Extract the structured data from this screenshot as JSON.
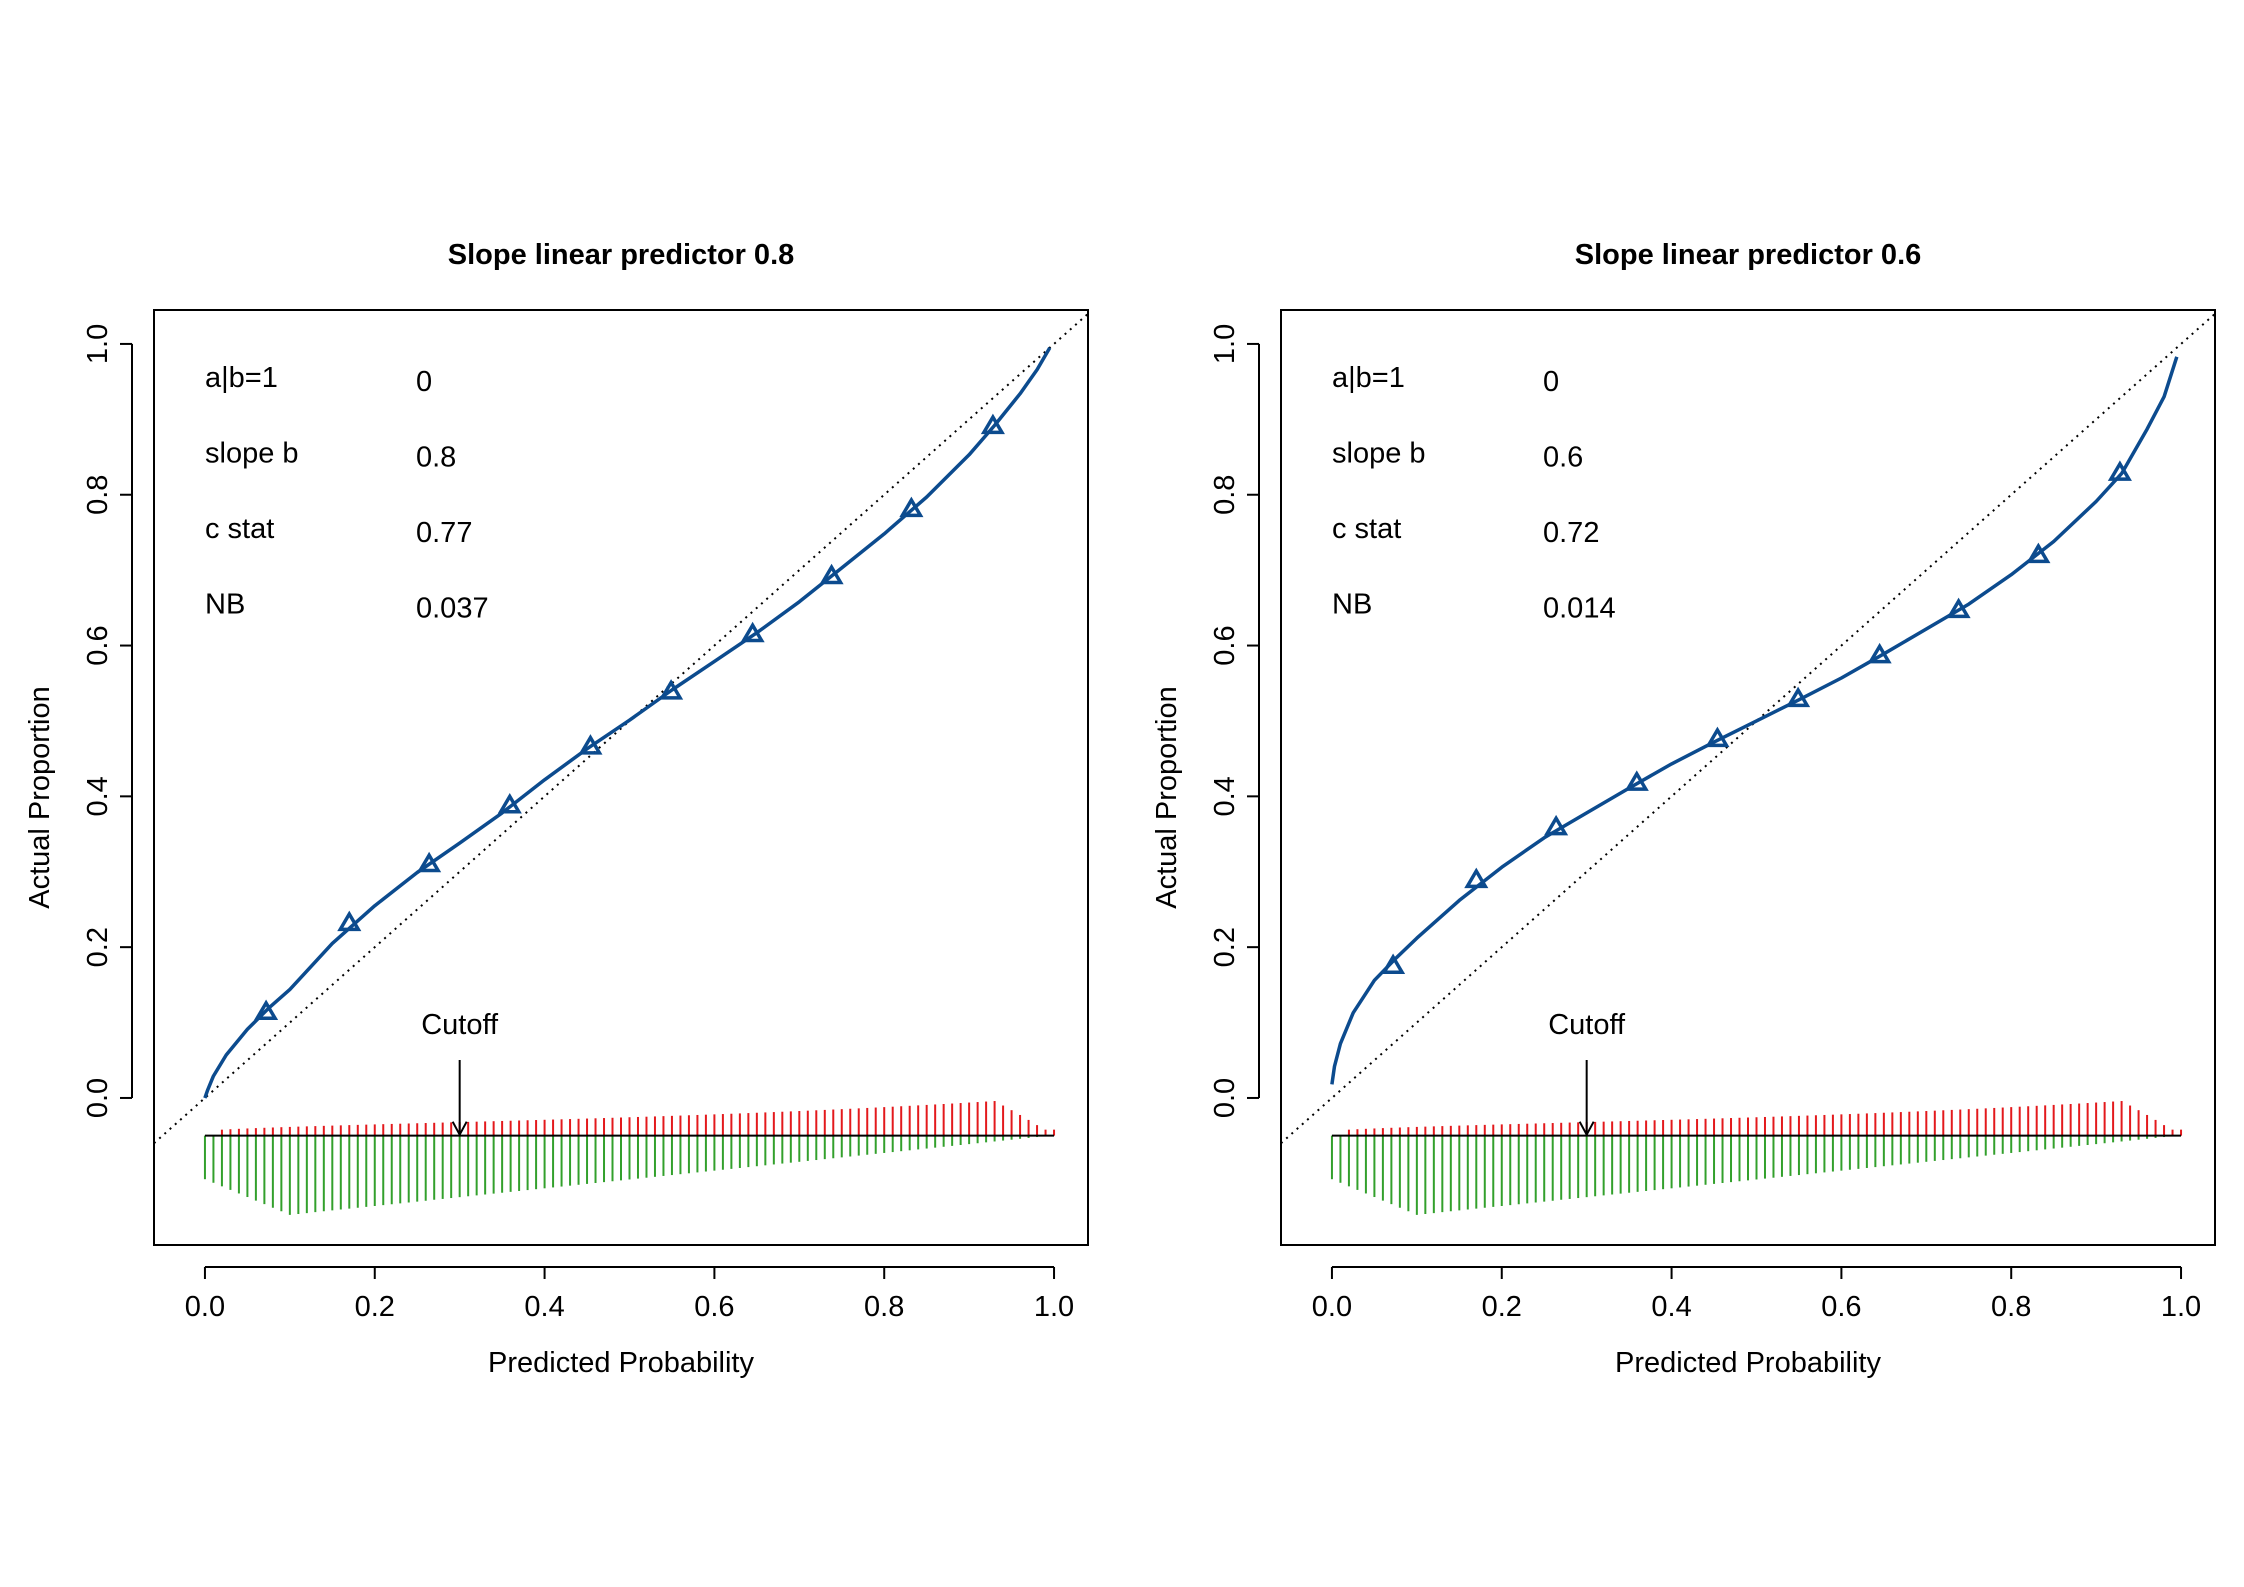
{
  "chart_data": [
    {
      "type": "line",
      "title": "Slope linear predictor 0.8",
      "xlabel": "Predicted Probability",
      "ylabel": "Actual Proportion",
      "xlim": [
        -0.06,
        1.04
      ],
      "ylim": [
        -0.195,
        1.045
      ],
      "xticks": [
        0.0,
        0.2,
        0.4,
        0.6,
        0.8,
        1.0
      ],
      "yticks": [
        0.0,
        0.2,
        0.4,
        0.6,
        0.8,
        1.0
      ],
      "xtick_labels": [
        "0.0",
        "0.2",
        "0.4",
        "0.6",
        "0.8",
        "1.0"
      ],
      "ytick_labels": [
        "0.0",
        "0.2",
        "0.4",
        "0.6",
        "0.8",
        "1.0"
      ],
      "grid": false,
      "stats": [
        {
          "label": "a|b=1",
          "value": "0"
        },
        {
          "label": "slope b",
          "value": "0.8"
        },
        {
          "label": "c stat",
          "value": "0.77"
        },
        {
          "label": "NB",
          "value": "0.037"
        }
      ],
      "cutoff": {
        "label": "Cutoff",
        "x": 0.3
      },
      "slope": 0.8,
      "curve": {
        "x": [
          0.0,
          0.003,
          0.01,
          0.025,
          0.05,
          0.075,
          0.1,
          0.15,
          0.2,
          0.25,
          0.3,
          0.35,
          0.4,
          0.45,
          0.5,
          0.55,
          0.6,
          0.65,
          0.7,
          0.75,
          0.8,
          0.85,
          0.9,
          0.93,
          0.96,
          0.98,
          0.995
        ],
        "y": [
          0.0,
          0.01,
          0.029,
          0.057,
          0.091,
          0.119,
          0.144,
          0.205,
          0.255,
          0.299,
          0.338,
          0.378,
          0.422,
          0.463,
          0.501,
          0.541,
          0.579,
          0.617,
          0.658,
          0.703,
          0.748,
          0.797,
          0.853,
          0.892,
          0.934,
          0.966,
          0.995
        ]
      },
      "points": {
        "x": [
          0.072,
          0.17,
          0.264,
          0.359,
          0.454,
          0.549,
          0.645,
          0.738,
          0.832,
          0.928
        ],
        "y": [
          0.114,
          0.232,
          0.31,
          0.388,
          0.466,
          0.539,
          0.615,
          0.692,
          0.781,
          0.891
        ]
      },
      "diagonal": {
        "x": [
          -0.06,
          1.04
        ],
        "y": [
          -0.06,
          1.04
        ]
      },
      "spikes": {
        "baseline": -0.05,
        "x_range": [
          0.0,
          1.0
        ],
        "events_max": 0.049,
        "nonevents_max": 0.105
      },
      "colors": {
        "curve": "#0c4b8e",
        "points": "#0c4b8e",
        "events": "#e3191c",
        "nonevents": "#33a02c",
        "axis": "#000000"
      }
    },
    {
      "type": "line",
      "title": "Slope linear predictor 0.6",
      "xlabel": "Predicted Probability",
      "ylabel": "Actual Proportion",
      "xlim": [
        -0.06,
        1.04
      ],
      "ylim": [
        -0.195,
        1.045
      ],
      "xticks": [
        0.0,
        0.2,
        0.4,
        0.6,
        0.8,
        1.0
      ],
      "yticks": [
        0.0,
        0.2,
        0.4,
        0.6,
        0.8,
        1.0
      ],
      "xtick_labels": [
        "0.0",
        "0.2",
        "0.4",
        "0.6",
        "0.8",
        "1.0"
      ],
      "ytick_labels": [
        "0.0",
        "0.2",
        "0.4",
        "0.6",
        "0.8",
        "1.0"
      ],
      "grid": false,
      "stats": [
        {
          "label": "a|b=1",
          "value": "0"
        },
        {
          "label": "slope b",
          "value": "0.6"
        },
        {
          "label": "c stat",
          "value": "0.72"
        },
        {
          "label": "NB",
          "value": "0.014"
        }
      ],
      "cutoff": {
        "label": "Cutoff",
        "x": 0.3
      },
      "slope": 0.6,
      "curve": {
        "x": [
          0.0,
          0.003,
          0.01,
          0.025,
          0.05,
          0.075,
          0.1,
          0.15,
          0.2,
          0.25,
          0.3,
          0.35,
          0.4,
          0.45,
          0.5,
          0.55,
          0.6,
          0.65,
          0.7,
          0.75,
          0.8,
          0.85,
          0.9,
          0.93,
          0.96,
          0.98,
          0.995
        ],
        "y": [
          0.018,
          0.042,
          0.072,
          0.113,
          0.156,
          0.185,
          0.212,
          0.262,
          0.306,
          0.345,
          0.378,
          0.411,
          0.443,
          0.472,
          0.5,
          0.528,
          0.557,
          0.589,
          0.622,
          0.655,
          0.694,
          0.738,
          0.791,
          0.828,
          0.887,
          0.93,
          0.983
        ]
      },
      "points": {
        "x": [
          0.072,
          0.17,
          0.264,
          0.359,
          0.454,
          0.549,
          0.645,
          0.738,
          0.832,
          0.928
        ],
        "y": [
          0.175,
          0.289,
          0.359,
          0.418,
          0.476,
          0.529,
          0.587,
          0.647,
          0.72,
          0.829
        ]
      },
      "diagonal": {
        "x": [
          -0.06,
          1.04
        ],
        "y": [
          -0.06,
          1.04
        ]
      },
      "spikes": {
        "baseline": -0.05,
        "x_range": [
          0.0,
          1.0
        ],
        "events_max": 0.049,
        "nonevents_max": 0.105
      },
      "colors": {
        "curve": "#0c4b8e",
        "points": "#0c4b8e",
        "events": "#e3191c",
        "nonevents": "#33a02c",
        "axis": "#000000"
      }
    }
  ]
}
